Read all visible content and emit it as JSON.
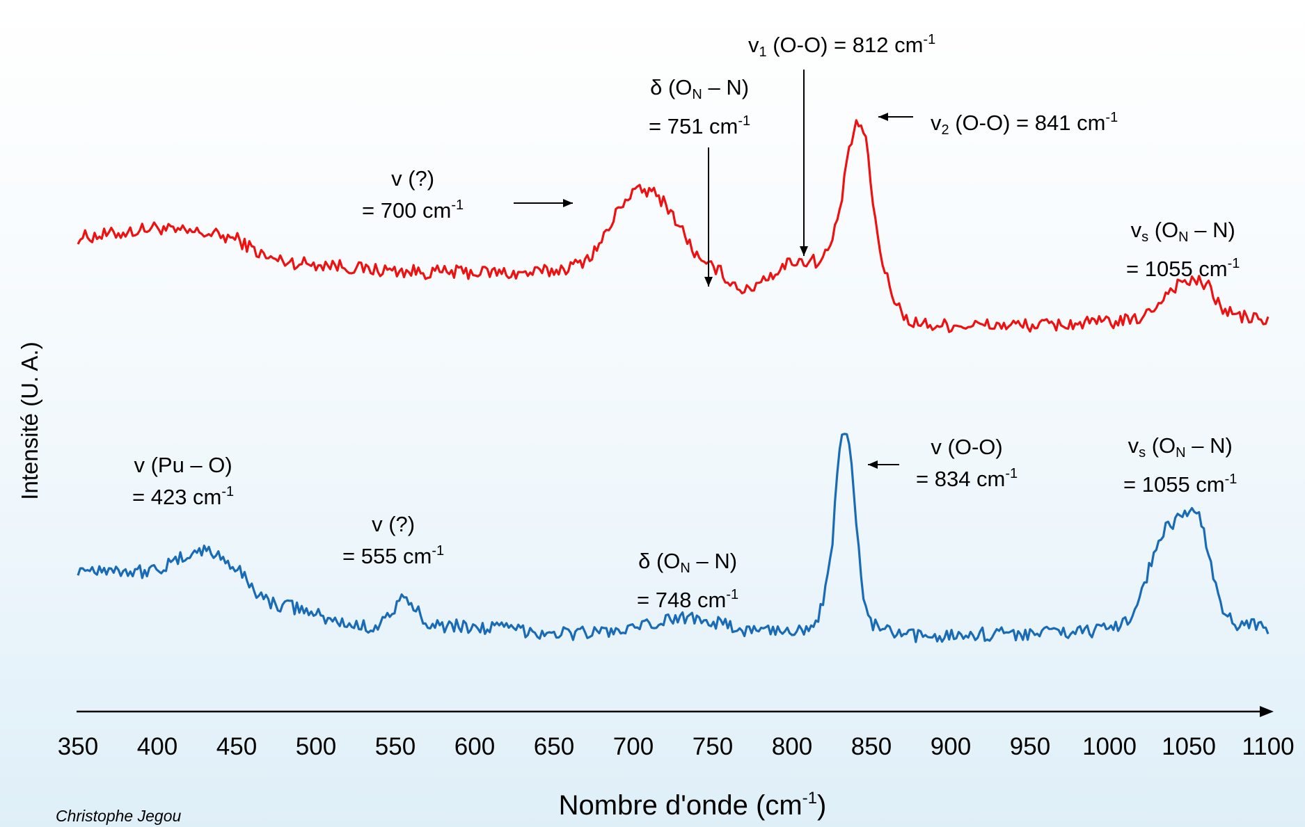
{
  "chart_data": {
    "type": "line",
    "title": "",
    "ylabel": "Intensité (U. A.)",
    "xlabel": "Nombre d'onde (cm-1)",
    "xlabel_parts": {
      "text": "Nombre d'onde (cm",
      "sup": "-1",
      "close": ")"
    },
    "xlim": [
      350,
      1100
    ],
    "x_ticks": [
      350,
      400,
      450,
      500,
      550,
      600,
      650,
      700,
      750,
      800,
      850,
      900,
      950,
      1000,
      1050,
      1100
    ],
    "ylim": [
      0,
      1
    ],
    "grid": false,
    "legend": "none",
    "series": [
      {
        "color": "#ee1111",
        "x": [
          350,
          370,
          390,
          400,
          410,
          430,
          450,
          470,
          490,
          510,
          530,
          550,
          570,
          590,
          610,
          630,
          650,
          665,
          675,
          685,
          692,
          700,
          708,
          715,
          722,
          730,
          738,
          745,
          751,
          758,
          765,
          772,
          780,
          790,
          800,
          808,
          812,
          818,
          825,
          830,
          834,
          838,
          841,
          846,
          850,
          855,
          860,
          866,
          872,
          880,
          890,
          900,
          920,
          940,
          960,
          980,
          1000,
          1015,
          1025,
          1035,
          1045,
          1055,
          1062,
          1070,
          1080,
          1090,
          1100
        ],
        "values": [
          0.56,
          0.57,
          0.585,
          0.595,
          0.58,
          0.575,
          0.555,
          0.49,
          0.475,
          0.47,
          0.455,
          0.45,
          0.445,
          0.445,
          0.445,
          0.44,
          0.45,
          0.47,
          0.51,
          0.59,
          0.67,
          0.71,
          0.715,
          0.7,
          0.66,
          0.59,
          0.515,
          0.46,
          0.465,
          0.43,
          0.4,
          0.38,
          0.42,
          0.445,
          0.485,
          0.48,
          0.485,
          0.48,
          0.54,
          0.65,
          0.78,
          0.895,
          0.945,
          0.9,
          0.72,
          0.52,
          0.42,
          0.34,
          0.29,
          0.275,
          0.27,
          0.27,
          0.27,
          0.27,
          0.27,
          0.275,
          0.28,
          0.285,
          0.31,
          0.37,
          0.415,
          0.415,
          0.4,
          0.33,
          0.3,
          0.295,
          0.28
        ]
      },
      {
        "color": "#1a6bb5",
        "x": [
          350,
          370,
          390,
          400,
          410,
          420,
          430,
          440,
          450,
          460,
          470,
          490,
          510,
          530,
          540,
          548,
          555,
          562,
          570,
          580,
          600,
          620,
          640,
          660,
          680,
          700,
          720,
          735,
          748,
          760,
          770,
          790,
          805,
          815,
          820,
          825,
          828,
          830,
          833,
          836,
          840,
          845,
          850,
          855,
          860,
          870,
          880,
          900,
          950,
          1000,
          1015,
          1025,
          1035,
          1045,
          1052,
          1058,
          1065,
          1072,
          1080,
          1090,
          1100
        ],
        "values": [
          0.44,
          0.44,
          0.43,
          0.44,
          0.455,
          0.49,
          0.5,
          0.48,
          0.44,
          0.38,
          0.33,
          0.31,
          0.27,
          0.25,
          0.26,
          0.3,
          0.34,
          0.31,
          0.27,
          0.255,
          0.25,
          0.245,
          0.235,
          0.23,
          0.235,
          0.24,
          0.27,
          0.285,
          0.275,
          0.25,
          0.24,
          0.24,
          0.24,
          0.27,
          0.33,
          0.5,
          0.7,
          0.83,
          0.895,
          0.86,
          0.6,
          0.34,
          0.265,
          0.245,
          0.235,
          0.22,
          0.22,
          0.225,
          0.23,
          0.24,
          0.29,
          0.44,
          0.57,
          0.61,
          0.64,
          0.59,
          0.42,
          0.29,
          0.26,
          0.26,
          0.25
        ]
      }
    ]
  },
  "annotations": {
    "red_v1_oo": {
      "a": "v",
      "sub": "1",
      "b": " (O-O) = 812 cm",
      "sup": "-1"
    },
    "red_delta_l1": {
      "a": "δ (O",
      "sub": "N",
      "b": " – N)"
    },
    "red_delta_l2": {
      "a": "= 751 cm",
      "sup": "-1"
    },
    "red_v2_oo": {
      "a": "v",
      "sub": "2",
      "b": " (O-O) = 841 cm",
      "sup": "-1"
    },
    "red_vq_l1": "v (?)",
    "red_vq_l2": {
      "a": "= 700 cm",
      "sup": "-1"
    },
    "red_vs_l1": {
      "a": "v",
      "sub": "s",
      "b": " (O",
      "sub2": "N",
      "c": " – N)"
    },
    "red_vs_l2": {
      "a": "= 1055 cm",
      "sup": "-1"
    },
    "blue_pu_l1": "v (Pu – O)",
    "blue_pu_l2": {
      "a": "= 423 cm",
      "sup": "-1"
    },
    "blue_vq_l1": "v (?)",
    "blue_vq_l2": {
      "a": "= 555 cm",
      "sup": "-1"
    },
    "blue_delta_l1": {
      "a": "δ (O",
      "sub": "N",
      "b": " – N)"
    },
    "blue_delta_l2": {
      "a": "= 748 cm",
      "sup": "-1"
    },
    "blue_oo_l1": "v (O-O)",
    "blue_oo_l2": {
      "a": "= 834 cm",
      "sup": "-1"
    },
    "blue_vs_l1": {
      "a": "v",
      "sub": "s",
      "b": " (O",
      "sub2": "N",
      "c": " – N)"
    },
    "blue_vs_l2": {
      "a": "= 1055 cm",
      "sup": "-1"
    }
  },
  "credit": "Christophe Jegou"
}
